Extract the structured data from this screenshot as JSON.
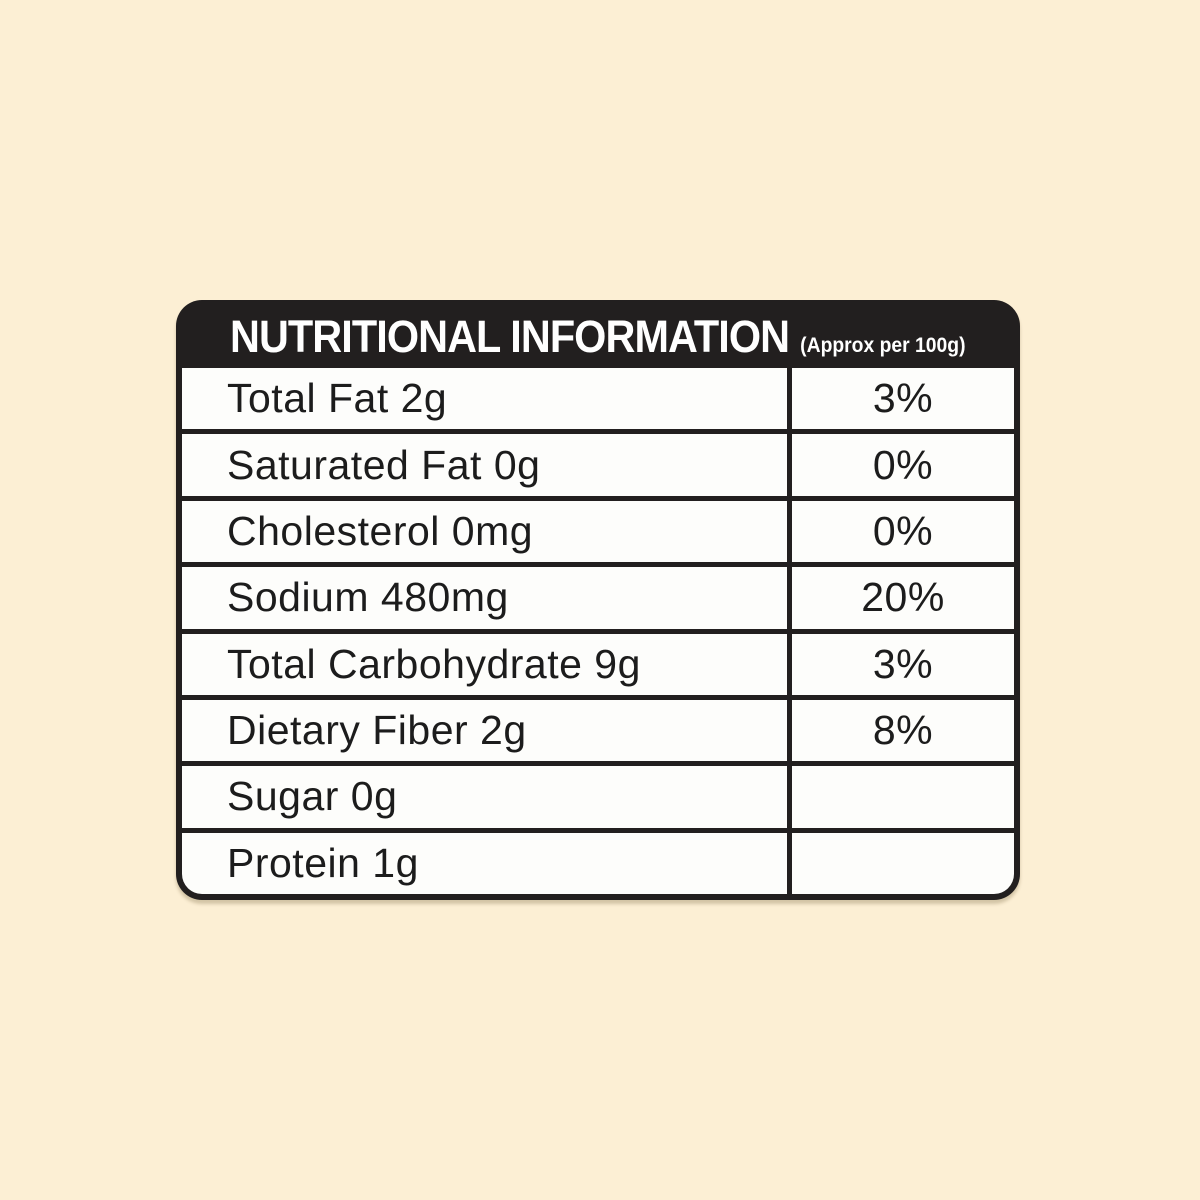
{
  "label": {
    "title": "NUTRITIONAL INFORMATION",
    "subtitle": "(Approx per 100g)",
    "rows": [
      {
        "name": "Total Fat 2g",
        "percent": "3%"
      },
      {
        "name": "Saturated Fat 0g",
        "percent": "0%"
      },
      {
        "name": "Cholesterol 0mg",
        "percent": "0%"
      },
      {
        "name": "Sodium 480mg",
        "percent": "20%"
      },
      {
        "name": "Total Carbohydrate 9g",
        "percent": "3%"
      },
      {
        "name": "Dietary Fiber 2g",
        "percent": "8%"
      },
      {
        "name": "Sugar 0g",
        "percent": ""
      },
      {
        "name": "Protein 1g",
        "percent": ""
      }
    ],
    "colors": {
      "page_background": "#fcefd4",
      "header_background": "#221f1f",
      "border": "#221f1f",
      "cell_background": "#fdfdfb",
      "header_text": "#ffffff",
      "row_text": "#1c1c1c"
    }
  }
}
